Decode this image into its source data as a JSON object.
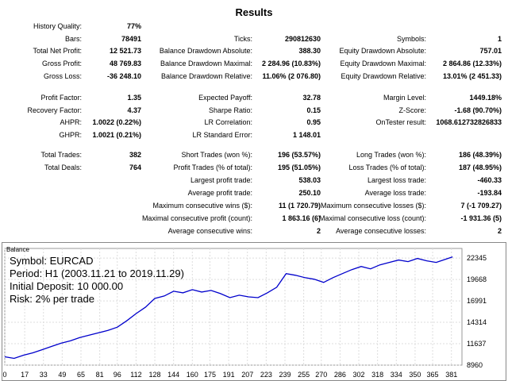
{
  "report": {
    "title": "Results",
    "col1": [
      {
        "label": "History Quality:",
        "value": "77%"
      },
      {
        "label": "Bars:",
        "value": "78491"
      },
      {
        "label": "Total Net Profit:",
        "value": "12 521.73"
      },
      {
        "label": "Gross Profit:",
        "value": "48 769.83"
      },
      {
        "label": "Gross Loss:",
        "value": "-36 248.10"
      },
      {
        "label": "",
        "value": ""
      },
      {
        "label": "Profit Factor:",
        "value": "1.35"
      },
      {
        "label": "Recovery Factor:",
        "value": "4.37"
      },
      {
        "label": "AHPR:",
        "value": "1.0022 (0.22%)"
      },
      {
        "label": "GHPR:",
        "value": "1.0021 (0.21%)"
      },
      {
        "label": "",
        "value": ""
      },
      {
        "label": "Total Trades:",
        "value": "382"
      },
      {
        "label": "Total Deals:",
        "value": "764"
      }
    ],
    "col2": [
      {
        "label": "",
        "value": ""
      },
      {
        "label": "Ticks:",
        "value": "290812630"
      },
      {
        "label": "Balance Drawdown Absolute:",
        "value": "388.30"
      },
      {
        "label": "Balance Drawdown Maximal:",
        "value": "2 284.96 (10.83%)"
      },
      {
        "label": "Balance Drawdown Relative:",
        "value": "11.06% (2 076.80)"
      },
      {
        "label": "",
        "value": ""
      },
      {
        "label": "Expected Payoff:",
        "value": "32.78"
      },
      {
        "label": "Sharpe Ratio:",
        "value": "0.15"
      },
      {
        "label": "LR Correlation:",
        "value": "0.95"
      },
      {
        "label": "LR Standard Error:",
        "value": "1 148.01"
      },
      {
        "label": "",
        "value": ""
      },
      {
        "label": "Short Trades (won %):",
        "value": "196 (53.57%)"
      },
      {
        "label": "Profit Trades (% of total):",
        "value": "195 (51.05%)"
      },
      {
        "label": "Largest profit trade:",
        "value": "538.03"
      },
      {
        "label": "Average profit trade:",
        "value": "250.10"
      },
      {
        "label": "Maximum consecutive wins ($):",
        "value": "11 (1 720.79)"
      },
      {
        "label": "Maximal consecutive profit (count):",
        "value": "1 863.16 (6)"
      },
      {
        "label": "Average consecutive wins:",
        "value": "2"
      }
    ],
    "col3": [
      {
        "label": "",
        "value": ""
      },
      {
        "label": "Symbols:",
        "value": "1"
      },
      {
        "label": "Equity Drawdown Absolute:",
        "value": "757.01"
      },
      {
        "label": "Equity Drawdown Maximal:",
        "value": "2 864.86 (12.33%)"
      },
      {
        "label": "Equity Drawdown Relative:",
        "value": "13.01% (2 451.33)"
      },
      {
        "label": "",
        "value": ""
      },
      {
        "label": "Margin Level:",
        "value": "1449.18%"
      },
      {
        "label": "Z-Score:",
        "value": "-1.68 (90.70%)"
      },
      {
        "label": "OnTester result:",
        "value": "1068.612732826833"
      },
      {
        "label": "",
        "value": ""
      },
      {
        "label": "",
        "value": ""
      },
      {
        "label": "Long Trades (won %):",
        "value": "186 (48.39%)"
      },
      {
        "label": "Loss Trades (% of total):",
        "value": "187 (48.95%)"
      },
      {
        "label": "Largest loss trade:",
        "value": "-460.33"
      },
      {
        "label": "Average loss trade:",
        "value": "-193.84"
      },
      {
        "label": "Maximum consecutive losses ($):",
        "value": "7 (-1 709.27)"
      },
      {
        "label": "Maximal consecutive loss (count):",
        "value": "-1 931.36 (5)"
      },
      {
        "label": "Average consecutive losses:",
        "value": "2"
      }
    ]
  },
  "chart_data": {
    "type": "line",
    "title": "Balance",
    "overlay": [
      "Symbol: EURCAD",
      "Period: H1 (2003.11.21 to 2019.11.29)",
      "Initial Deposit: 10 000.00",
      "Risk: 2% per trade"
    ],
    "xlim": [
      0,
      390
    ],
    "ylim": [
      8960,
      23550
    ],
    "x_ticks": [
      0,
      17,
      33,
      49,
      65,
      81,
      96,
      112,
      128,
      144,
      160,
      175,
      191,
      207,
      223,
      239,
      255,
      270,
      286,
      302,
      318,
      334,
      350,
      365,
      381
    ],
    "y_ticks": [
      8960,
      11637,
      14314,
      16991,
      19668,
      22345
    ],
    "grid": true,
    "line_color": "#0000cc",
    "series": [
      {
        "x": [
          0,
          8,
          16,
          24,
          32,
          40,
          48,
          56,
          64,
          72,
          80,
          88,
          96,
          104,
          112,
          120,
          128,
          136,
          144,
          152,
          160,
          168,
          176,
          184,
          192,
          200,
          208,
          216,
          224,
          232,
          240,
          248,
          256,
          264,
          272,
          280,
          288,
          296,
          304,
          312,
          320,
          328,
          336,
          344,
          352,
          360,
          368,
          376,
          382
        ],
        "values": [
          10000,
          9800,
          10200,
          10500,
          10900,
          11300,
          11700,
          12000,
          12400,
          12700,
          13000,
          13300,
          13700,
          14500,
          15400,
          16200,
          17300,
          17600,
          18200,
          18000,
          18400,
          18100,
          18300,
          17900,
          17400,
          17700,
          17500,
          17400,
          18000,
          18700,
          20400,
          20200,
          19900,
          19700,
          19300,
          19900,
          20400,
          20900,
          21300,
          21000,
          21500,
          21800,
          22100,
          21900,
          22300,
          22000,
          21800,
          22200,
          22500
        ]
      }
    ]
  }
}
